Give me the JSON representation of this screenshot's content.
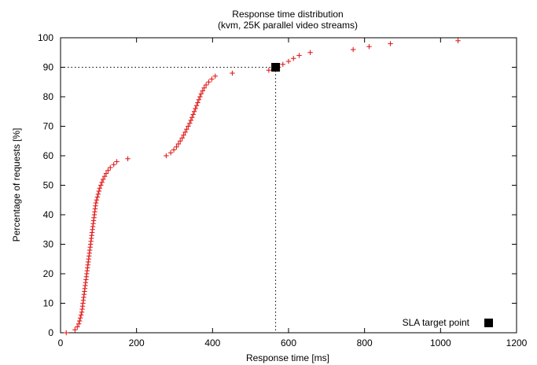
{
  "chart_data": {
    "type": "scatter",
    "title": "Response time distribution",
    "subtitle": "(kvm, 25K parallel video streams)",
    "xlabel": "Response time [ms]",
    "ylabel": "Percentage of requests [%]",
    "xlim": [
      0,
      1200
    ],
    "ylim": [
      0,
      100
    ],
    "x_ticks": [
      0,
      200,
      400,
      600,
      800,
      1000,
      1200
    ],
    "y_ticks": [
      0,
      10,
      20,
      30,
      40,
      50,
      60,
      70,
      80,
      90,
      100
    ],
    "grid": false,
    "marker_color": "#e02020",
    "series": [
      {
        "marker": "plus",
        "x": [
          15,
          38,
          44,
          48,
          50,
          52,
          54,
          56,
          57,
          58,
          59,
          60,
          61,
          62,
          63,
          64,
          65,
          66,
          67,
          68,
          69,
          70,
          71,
          72,
          73,
          74,
          75,
          76,
          77,
          78,
          79,
          80,
          81,
          82,
          83,
          84,
          85,
          86,
          87,
          88,
          89,
          90,
          91,
          92,
          93,
          95,
          97,
          99,
          101,
          103,
          106,
          109,
          112,
          116,
          120,
          125,
          131,
          140,
          148,
          177,
          278,
          290,
          298,
          305,
          310,
          315,
          320,
          324,
          328,
          332,
          336,
          340,
          343,
          346,
          349,
          352,
          355,
          358,
          361,
          364,
          367,
          370,
          374,
          378,
          383,
          390,
          398,
          407,
          452,
          548,
          573,
          585,
          600,
          613,
          628,
          657,
          770,
          812,
          868,
          1046
        ],
        "y": [
          0,
          1,
          2,
          3,
          4,
          5,
          6,
          7,
          8,
          9,
          10,
          11,
          12,
          13,
          14,
          15,
          16,
          17,
          18,
          19,
          20,
          21,
          22,
          23,
          24,
          25,
          26,
          27,
          28,
          29,
          30,
          31,
          32,
          33,
          34,
          35,
          36,
          37,
          38,
          39,
          40,
          41,
          42,
          43,
          44,
          45,
          46,
          47,
          48,
          49,
          50,
          51,
          52,
          53,
          54,
          55,
          56,
          57,
          58,
          59,
          60,
          61,
          62,
          63,
          64,
          65,
          66,
          67,
          68,
          69,
          70,
          71,
          72,
          73,
          74,
          75,
          76,
          77,
          78,
          79,
          80,
          81,
          82,
          83,
          84,
          85,
          86,
          87,
          88,
          89,
          90,
          91,
          92,
          93,
          94,
          95,
          96,
          97,
          98,
          99
        ]
      }
    ],
    "sla_point": {
      "x": 566,
      "y": 90,
      "color": "#000000"
    },
    "legend": {
      "label": "SLA target point",
      "position": "bottom-right"
    }
  }
}
